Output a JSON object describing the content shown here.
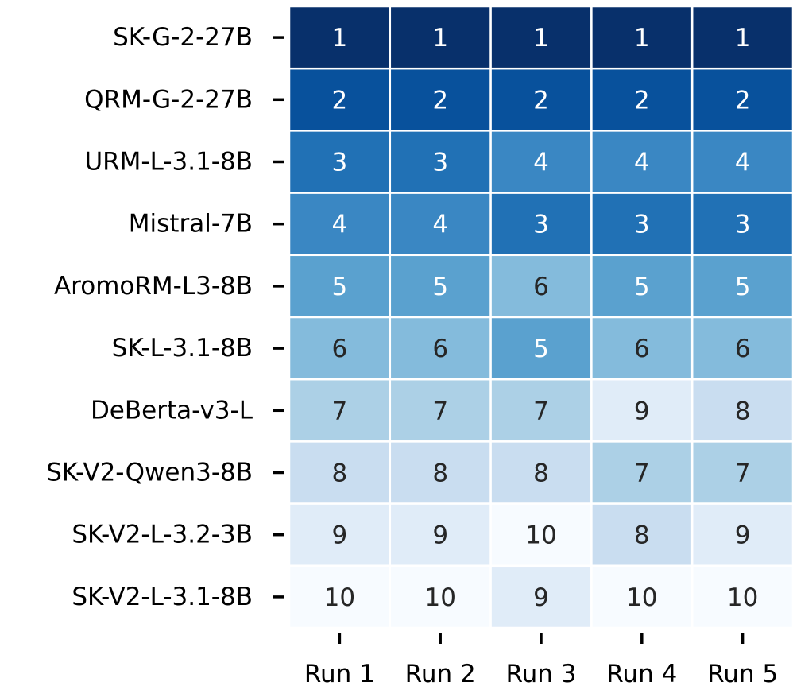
{
  "chart_data": {
    "type": "heatmap",
    "title": "",
    "xlabel": "",
    "ylabel": "",
    "columns": [
      "Run 1",
      "Run 2",
      "Run 3",
      "Run 4",
      "Run 5"
    ],
    "rows": [
      "SK-G-2-27B",
      "QRM-G-2-27B",
      "URM-L-3.1-8B",
      "Mistral-7B",
      "AromoRM-L3-8B",
      "SK-L-3.1-8B",
      "DeBerta-v3-L",
      "SK-V2-Qwen3-8B",
      "SK-V2-L-3.2-3B",
      "SK-V2-L-3.1-8B"
    ],
    "values": [
      [
        1,
        1,
        1,
        1,
        1
      ],
      [
        2,
        2,
        2,
        2,
        2
      ],
      [
        3,
        3,
        4,
        4,
        4
      ],
      [
        4,
        4,
        3,
        3,
        3
      ],
      [
        5,
        5,
        6,
        5,
        5
      ],
      [
        6,
        6,
        5,
        6,
        6
      ],
      [
        7,
        7,
        7,
        9,
        8
      ],
      [
        8,
        8,
        8,
        7,
        7
      ],
      [
        9,
        9,
        10,
        8,
        9
      ],
      [
        10,
        10,
        9,
        10,
        10
      ]
    ],
    "value_range": [
      1,
      10
    ],
    "colormap": "Blues (reversed: 1 = darkest)",
    "colors": [
      "#08306b",
      "#08519c",
      "#2171b5",
      "#3a87c3",
      "#5aa1cf",
      "#84bbdc",
      "#acd0e6",
      "#c9ddf0",
      "#e0ecf8",
      "#f7fbff"
    ],
    "text_colors": {
      "dark": "#262626",
      "light": "#ffffff"
    }
  }
}
